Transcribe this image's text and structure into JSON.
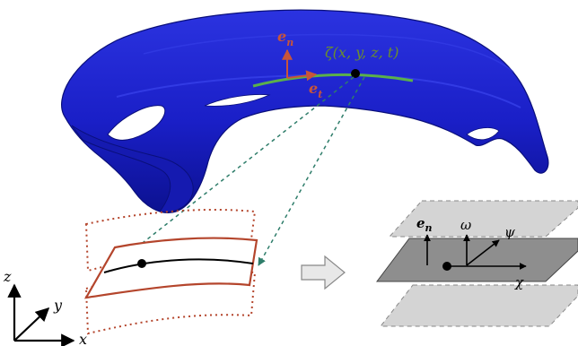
{
  "diagram": {
    "surface_label": "ζ(x, y, z, t)",
    "normal_vector": "e",
    "normal_sub": "n",
    "tangent_vector": "e",
    "tangent_sub": "t",
    "axes": {
      "z": "z",
      "y": "y",
      "x": "x"
    },
    "plane_normal": "e",
    "plane_normal_sub": "n",
    "plane_labels": {
      "omega": "ω",
      "psi": "ψ",
      "chi": "χ"
    }
  },
  "colors": {
    "surface_fill": "#1a1fc7",
    "surface_edge": "#0a0f7a",
    "curve_green": "#5bb04a",
    "label_green": "#6b8f2c",
    "vector_red": "#c8553a",
    "box_red": "#b4452c",
    "dashed_connector": "#2e7d6a",
    "plane_light": "#d4d4d4",
    "plane_dark": "#8e8e8e",
    "arrow_gray": "#e8e8e8"
  }
}
